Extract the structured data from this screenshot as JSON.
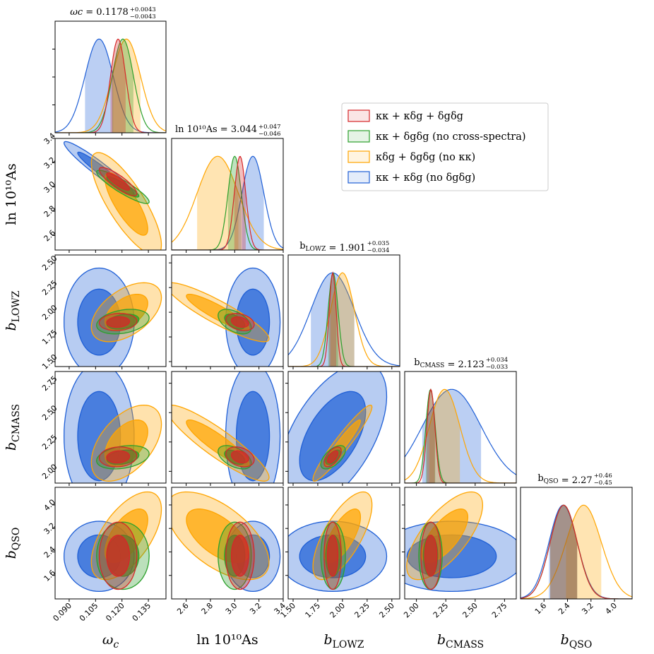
{
  "chart_data": {
    "type": "corner",
    "parameters": [
      {
        "key": "wc",
        "label": "ωc",
        "title": "ωc = 0.1178 +0.0043 / -0.0043",
        "range": [
          0.082,
          0.145
        ],
        "ticks": [
          "0.090",
          "0.105",
          "0.120",
          "0.135"
        ],
        "tick_values": [
          0.09,
          0.105,
          0.12,
          0.135
        ]
      },
      {
        "key": "lnAs",
        "label": "ln 10^10 As",
        "title": "ln 10^10 As = 3.044 +0.047 / -0.046",
        "range": [
          2.48,
          3.4
        ],
        "ticks": [
          "2.6",
          "2.8",
          "3.0",
          "3.2",
          "3.4"
        ],
        "tick_values": [
          2.6,
          2.8,
          3.0,
          3.2,
          3.4
        ]
      },
      {
        "key": "bLOWZ",
        "label": "b LOWZ",
        "title": "b LOWZ = 1.901 +0.035 / -0.034",
        "range": [
          1.45,
          2.58
        ],
        "ticks": [
          "1.50",
          "1.75",
          "2.00",
          "2.25",
          "2.50"
        ],
        "tick_values": [
          1.5,
          1.75,
          2.0,
          2.25,
          2.5
        ]
      },
      {
        "key": "bCMASS",
        "label": "b CMASS",
        "title": "b CMASS = 2.123 +0.034 / -0.033",
        "range": [
          1.9,
          2.85
        ],
        "ticks": [
          "2.00",
          "2.25",
          "2.50",
          "2.75"
        ],
        "tick_values": [
          2.0,
          2.25,
          2.5,
          2.75
        ]
      },
      {
        "key": "bQSO",
        "label": "b QSO",
        "title": "b QSO = 2.27 +0.46 / -0.45",
        "range": [
          0.8,
          4.6
        ],
        "ticks": [
          "1.6",
          "2.4",
          "3.2",
          "4.0"
        ],
        "tick_values": [
          1.6,
          2.4,
          3.2,
          4.0
        ]
      }
    ],
    "axis_labels": {
      "x": [
        "ωc",
        "ln 10¹⁰As",
        "bLOWZ",
        "bCMASS",
        "bQSO"
      ],
      "y": [
        "ln 10¹⁰As",
        "bLOWZ",
        "bCMASS",
        "bQSO"
      ]
    },
    "titles": [
      {
        "pre": "ωc",
        "sub": "",
        "eq": " = 0.1178",
        "up": "+0.0043",
        "lo": "−0.0043"
      },
      {
        "pre": "ln 10¹⁰As",
        "sub": "",
        "eq": " = 3.044",
        "up": "+0.047",
        "lo": "−0.046"
      },
      {
        "pre": "b",
        "sub": "LOWZ",
        "eq": " = 1.901",
        "up": "+0.035",
        "lo": "−0.034"
      },
      {
        "pre": "b",
        "sub": "CMASS",
        "eq": " = 2.123",
        "up": "+0.034",
        "lo": "−0.033"
      },
      {
        "pre": "b",
        "sub": "QSO",
        "eq": " = 2.27",
        "up": "+0.46",
        "lo": "−0.45"
      }
    ],
    "series": [
      {
        "name": "κκ + κδg + δgδg",
        "color": "#d62728",
        "fill": "#d62728",
        "mean": [
          0.1178,
          3.044,
          1.901,
          2.123,
          2.27
        ],
        "sigma": [
          0.0043,
          0.047,
          0.035,
          0.034,
          0.46
        ],
        "corr": {
          "wc|lnAs": -0.85,
          "wc|bLOWZ": 0.1,
          "wc|bCMASS": 0.1,
          "wc|bQSO": 0.0,
          "lnAs|bLOWZ": -0.3,
          "lnAs|bCMASS": -0.3,
          "lnAs|bQSO": 0.0,
          "bLOWZ|bCMASS": 0.6,
          "bLOWZ|bQSO": 0.0,
          "bCMASS|bQSO": 0.0
        }
      },
      {
        "name": "κκ + δgδg (no cross-spectra)",
        "color": "#2ca02c",
        "fill": "#2ca02c",
        "mean": [
          0.1205,
          3.0,
          1.905,
          2.12,
          2.27
        ],
        "sigma": [
          0.006,
          0.055,
          0.05,
          0.04,
          0.46
        ],
        "corr": {
          "wc|lnAs": -0.9,
          "wc|bLOWZ": 0.3,
          "wc|bCMASS": 0.3,
          "wc|bQSO": 0.0,
          "lnAs|bLOWZ": -0.5,
          "lnAs|bCMASS": -0.5,
          "lnAs|bQSO": 0.0,
          "bLOWZ|bCMASS": 0.6,
          "bLOWZ|bQSO": 0.0,
          "bCMASS|bQSO": 0.0
        }
      },
      {
        "name": "κδg + δgδg (no κκ)",
        "color": "#ffa500",
        "fill": "#ffa500",
        "mean": [
          0.1225,
          2.86,
          2.0,
          2.24,
          2.95
        ],
        "sigma": [
          0.008,
          0.17,
          0.12,
          0.13,
          0.6
        ],
        "corr": {
          "wc|lnAs": -0.8,
          "wc|bLOWZ": 0.5,
          "wc|bCMASS": 0.5,
          "wc|bQSO": 0.6,
          "lnAs|bLOWZ": -0.9,
          "lnAs|bCMASS": -0.9,
          "lnAs|bQSO": -0.6,
          "bLOWZ|bCMASS": 0.95,
          "bLOWZ|bQSO": 0.7,
          "bCMASS|bQSO": 0.7
        }
      },
      {
        "name": "κκ + κδg (no δgδg)",
        "color": "#1f5fd6",
        "fill": "#1f5fd6",
        "mean": [
          0.107,
          3.15,
          1.9,
          2.3,
          2.25
        ],
        "sigma": [
          0.008,
          0.09,
          0.22,
          0.25,
          0.48
        ],
        "corr": {
          "wc|lnAs": -0.95,
          "wc|bLOWZ": 0.0,
          "wc|bCMASS": 0.0,
          "wc|bQSO": 0.0,
          "lnAs|bLOWZ": 0.0,
          "lnAs|bCMASS": 0.0,
          "lnAs|bQSO": 0.0,
          "bLOWZ|bCMASS": 0.55,
          "bLOWZ|bQSO": 0.0,
          "bCMASS|bQSO": 0.0
        }
      }
    ],
    "legend": {
      "placement": "top-right",
      "entries": [
        {
          "color": "#d62728",
          "text": "κκ + κδg + δgδg"
        },
        {
          "color": "#2ca02c",
          "text": "κκ + δgδg (no cross-spectra)"
        },
        {
          "color": "#ffa500",
          "text": "κδg + δgδg (no κκ)"
        },
        {
          "color": "#1f5fd6",
          "text": "κκ + κδg (no δgδg)"
        }
      ]
    }
  }
}
